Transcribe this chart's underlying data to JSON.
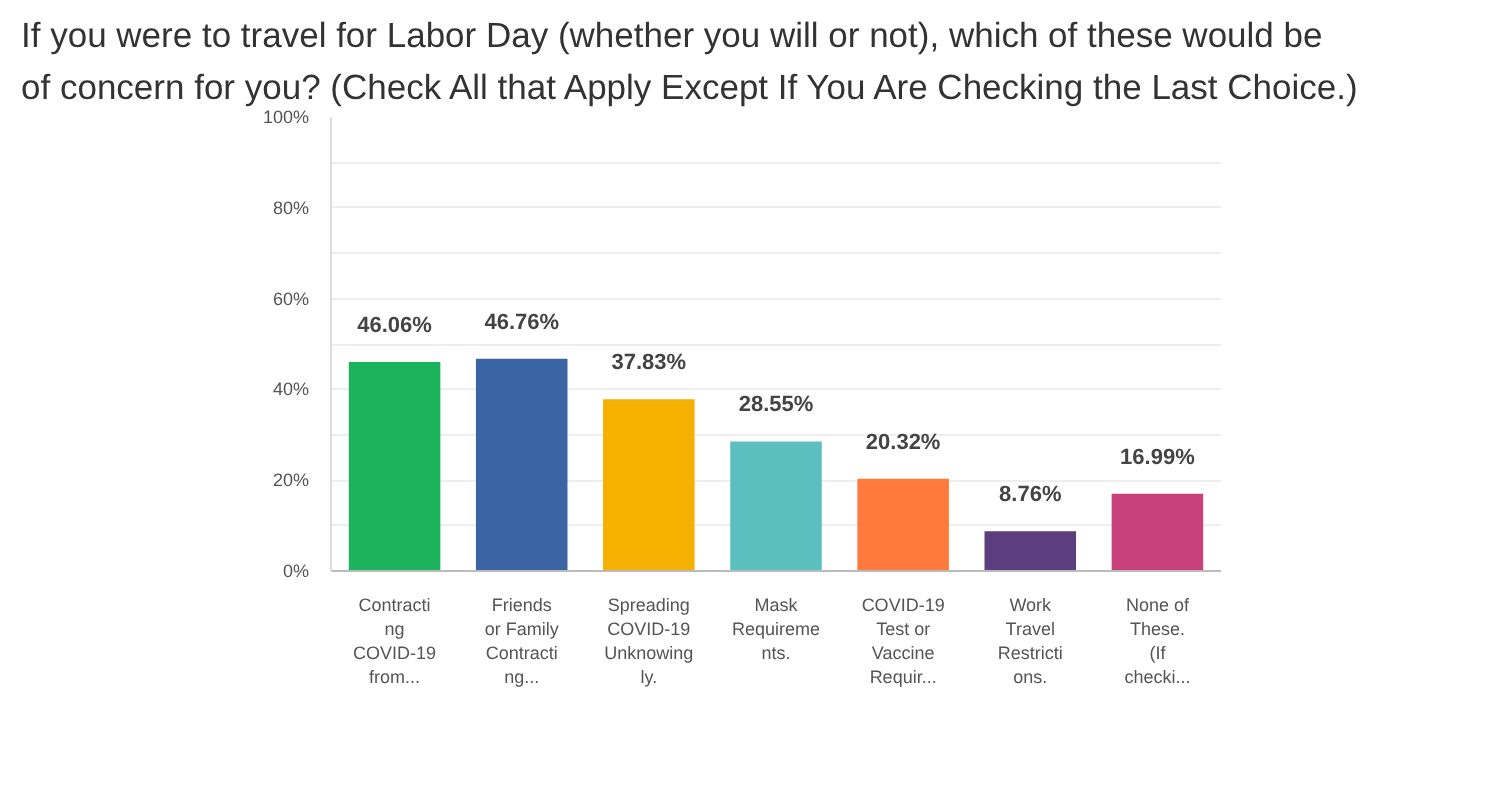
{
  "chart_data": {
    "type": "bar",
    "title": "If you were to travel for Labor Day (whether you will or not), which of these would be of concern for you? (Check All that Apply Except If You Are Checking the Last Choice.)",
    "categories": [
      "Contracti\nng\nCOVID-19\nfrom...",
      "Friends\nor Family\nContracti\nng...",
      "Spreading\nCOVID-19\nUnknowing\nly.",
      "Mask\nRequireme\nnts.",
      "COVID-19\nTest or\nVaccine\nRequir...",
      "Work\nTravel\nRestricti\nons.",
      "None of\nThese.\n(If\nchecki..."
    ],
    "values": [
      46.06,
      46.76,
      37.83,
      28.55,
      20.32,
      8.76,
      16.99
    ],
    "value_labels": [
      "46.06%",
      "46.76%",
      "37.83%",
      "28.55%",
      "20.32%",
      "8.76%",
      "16.99%"
    ],
    "colors": [
      "#1db35c",
      "#3b64a5",
      "#f5b000",
      "#5bbfbf",
      "#ff7a3d",
      "#5c3d7e",
      "#c9417a"
    ],
    "ylim": [
      0,
      100
    ],
    "yticks": [
      {
        "value": 0,
        "label": "0%"
      },
      {
        "value": 10,
        "label": null
      },
      {
        "value": 20,
        "label": "20%"
      },
      {
        "value": 30,
        "label": null
      },
      {
        "value": 40,
        "label": "40%"
      },
      {
        "value": 50,
        "label": null
      },
      {
        "value": 60,
        "label": "60%"
      },
      {
        "value": 70,
        "label": null
      },
      {
        "value": 80,
        "label": "80%"
      },
      {
        "value": 90,
        "label": null
      },
      {
        "value": 100,
        "label": "100%"
      }
    ],
    "grid": "y"
  }
}
